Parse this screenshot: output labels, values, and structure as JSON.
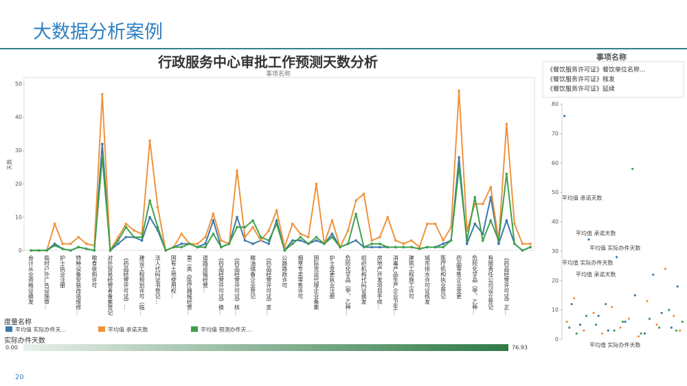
{
  "header": {
    "title": "大数据分析案例"
  },
  "page_number": "20",
  "chart_data": [
    {
      "type": "line",
      "title": "行政服务中心审批工作预测天数分析",
      "subtitle": "事项名称",
      "y_label": "天数",
      "legend_title": "度量名称",
      "categories": [
        "会计从业资格证换发",
        null,
        "临时户外广告设施审...",
        null,
        "护士执业注册",
        null,
        "特种设备安装改造维修...",
        null,
        "粮食收购许可",
        null,
        "对外贸易经营者备案登记",
        null,
        "《药品经营许可证》...",
        null,
        "建设工程规划许可（临...",
        null,
        "法人代码证书登记...",
        null,
        "国有土地使用权...",
        null,
        "第二类《医疗器械经营...",
        null,
        "道路运输经营...",
        null,
        "《药品经营许可证》换...",
        null,
        "《药品经营许可证》核...",
        null,
        "粮油储备企业登记",
        null,
        "《药品经营许可证》变...",
        null,
        "公路路政许可",
        null,
        "烟草专卖零售许可",
        null,
        "国际货运代理企业备案",
        null,
        "护士变更执业注册",
        null,
        "危险化学品（甲、乙种...",
        null,
        "组织机构代码证换发",
        null,
        "房地产开发项目手续...",
        null,
        "消毒产品生产企业卫生...",
        null,
        "建筑工程施工许可",
        null,
        "城市排水许可证核发",
        null,
        "医疗机构执业登记",
        null,
        "药品零售企业变更",
        null,
        "危险化学品（甲、乙种...",
        null,
        "有限责任公司设立登记",
        null,
        "《药品经营许可证》正...",
        null,
        null,
        null
      ],
      "series": [
        {
          "name": "平均值 实际办件天...",
          "color": "#3b78a8",
          "values": [
            0,
            0,
            0,
            2,
            0.5,
            0,
            1,
            0.5,
            0,
            32,
            0,
            2,
            4,
            4,
            3,
            10,
            6,
            0,
            1,
            2,
            2,
            1,
            2,
            9,
            1,
            2,
            10,
            3,
            2,
            3,
            2,
            9,
            0,
            3,
            3,
            2,
            3,
            2,
            5,
            1,
            2,
            3,
            1,
            1,
            1,
            1,
            1,
            1,
            1,
            0.5,
            1,
            1,
            2,
            3,
            28,
            2,
            8,
            5,
            16,
            2,
            9,
            2,
            0,
            1
          ]
        },
        {
          "name": "平均值 承诺天数",
          "color": "#f0923a",
          "values": [
            0,
            0,
            0,
            8,
            2,
            2,
            4,
            2,
            1.5,
            47,
            0,
            4,
            8,
            6,
            5,
            33,
            13,
            0,
            1,
            5,
            2,
            2,
            4,
            11,
            3,
            2,
            24,
            4,
            7,
            3,
            6,
            12,
            1,
            8,
            5,
            4,
            20,
            2,
            9,
            1,
            6,
            15,
            17,
            3,
            4,
            10,
            3,
            2,
            3,
            1,
            8,
            8,
            3,
            7,
            48,
            6,
            14,
            14,
            19,
            3,
            38,
            8,
            2,
            2
          ]
        },
        {
          "name": "平均值 预测办件天...",
          "color": "#3fa04a",
          "values": [
            0,
            0,
            0,
            1.5,
            0.5,
            0,
            1,
            0.5,
            0,
            28,
            0,
            3,
            7,
            4,
            4,
            15,
            7,
            0,
            1,
            1,
            2,
            1,
            1,
            5,
            1,
            2,
            7,
            7,
            9,
            4,
            3,
            8,
            0,
            2,
            4,
            2,
            4,
            2,
            4,
            1,
            2,
            11,
            1,
            2,
            2,
            1,
            1,
            1,
            1,
            0.5,
            1,
            1,
            1,
            3,
            25,
            3,
            16,
            3,
            9,
            3,
            23,
            2,
            0,
            1
          ]
        }
      ],
      "ylim": [
        -2,
        52
      ],
      "yticks": [
        0,
        10,
        20,
        30,
        40,
        50
      ],
      "grid": false
    },
    {
      "type": "scatter",
      "legend_title": "事项名称",
      "legend_items": [
        "《餐饮服务许可证》餐饮单位名称...",
        "《餐饮服务许可证》核发",
        "《餐饮服务许可证》延续"
      ],
      "annotations": [
        {
          "text": "平均值 承诺天数",
          "y": 48
        },
        {
          "text": "平均值 承诺天数",
          "y": 36
        },
        {
          "text": "平均值 实际办件天数",
          "y": 31
        },
        {
          "text": "平均值 实际办件天数",
          "y": 26
        },
        {
          "text": "平均值 承诺天数",
          "y": 22
        },
        {
          "text": "平均值 实际办件天数",
          "y": -2
        }
      ],
      "series": [
        {
          "color": "#3b78a8",
          "x": [
            2,
            8,
            15,
            22,
            30,
            38,
            45,
            52,
            60,
            68,
            75,
            82,
            90,
            95
          ],
          "y": [
            76,
            12,
            5,
            34,
            8,
            3,
            28,
            6,
            15,
            2,
            22,
            9,
            4,
            18
          ]
        },
        {
          "color": "#f0923a",
          "x": [
            4,
            10,
            18,
            26,
            33,
            41,
            48,
            55,
            63,
            70,
            78,
            85,
            92,
            97
          ],
          "y": [
            6,
            14,
            3,
            9,
            2,
            11,
            4,
            7,
            1,
            13,
            5,
            24,
            8,
            3
          ]
        },
        {
          "color": "#3fa04a",
          "x": [
            6,
            12,
            20,
            28,
            36,
            43,
            50,
            58,
            65,
            72,
            80,
            88,
            94,
            99
          ],
          "y": [
            4,
            2,
            8,
            5,
            12,
            3,
            6,
            58,
            2,
            7,
            4,
            10,
            3,
            6
          ]
        }
      ],
      "xlim": [
        0,
        100
      ],
      "ylim": [
        0,
        80
      ],
      "yticks": [
        0,
        10,
        20,
        30,
        40,
        50,
        60,
        70,
        80
      ]
    }
  ],
  "color_legend": {
    "title": "实际办件天数",
    "min": {
      "value": 0,
      "label": "0.00"
    },
    "max": 76.93,
    "color": "#2e7a46"
  }
}
